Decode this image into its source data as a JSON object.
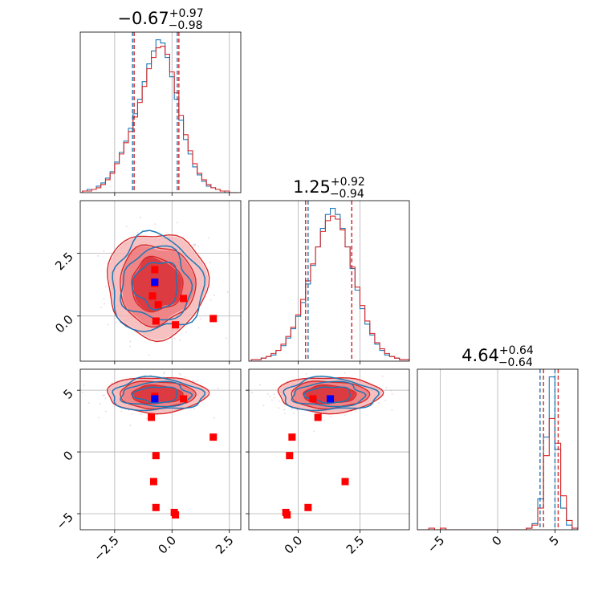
{
  "figure": {
    "colors": {
      "blue": "#1f77b4",
      "red": "#d62728",
      "red_marker": "#ff0000",
      "blue_marker": "#0000ff",
      "grid": "#b0b0b0"
    },
    "grid": true
  },
  "panels": {
    "p00": {
      "title_value": "−0.67",
      "title_sup": "+0.97",
      "title_sub": "−0.98"
    },
    "p11": {
      "title_value": "1.25",
      "title_sup": "+0.92",
      "title_sub": "−0.94"
    },
    "p22": {
      "title_value": "4.64",
      "title_sup": "+0.64",
      "title_sub": "−0.64"
    }
  },
  "chart_data": {
    "type": "scatter",
    "subtype": "corner-plot",
    "parameters": 3,
    "axes": {
      "x1": {
        "range": [
          -4.0,
          3.0
        ],
        "ticks": [
          -2.5,
          0.0,
          2.5
        ],
        "tick_labels": [
          "−2.5",
          "0.0",
          "2.5"
        ]
      },
      "x2": {
        "range": [
          -2.0,
          4.5
        ],
        "ticks": [
          0.0,
          2.5
        ],
        "tick_labels": [
          "0.0",
          "2.5"
        ]
      },
      "x3": {
        "range": [
          -7.0,
          7.0
        ],
        "ticks": [
          -5,
          0,
          5
        ],
        "tick_labels": [
          "−5",
          "0",
          "5"
        ]
      },
      "y_row1": {
        "range": [
          -1.8,
          4.6
        ],
        "ticks": [
          0.0,
          2.5
        ],
        "tick_labels": [
          "0.0",
          "2.5"
        ]
      },
      "y_row2": {
        "range": [
          -6.3,
          6.7
        ],
        "ticks": [
          -5,
          0,
          5
        ],
        "tick_labels": [
          "−5",
          "0",
          "5"
        ]
      }
    },
    "marginals": [
      {
        "param": 1,
        "mean": -0.67,
        "plus": 0.97,
        "minus": 0.98,
        "quantiles_red": [
          -1.65,
          0.3
        ],
        "quantiles_blue": [
          -1.72,
          0.23
        ],
        "bins": [
          -3.9,
          -3.7,
          -3.5,
          -3.3,
          -3.1,
          -2.9,
          -2.7,
          -2.5,
          -2.3,
          -2.1,
          -1.9,
          -1.7,
          -1.5,
          -1.3,
          -1.1,
          -0.9,
          -0.7,
          -0.5,
          -0.3,
          -0.1,
          0.1,
          0.3,
          0.5,
          0.7,
          0.9,
          1.1,
          1.3,
          1.5,
          1.7,
          1.9,
          2.1,
          2.3,
          2.5,
          2.7,
          2.9
        ],
        "hist_red": [
          1,
          1,
          2,
          3,
          5,
          8,
          12,
          18,
          24,
          31,
          38,
          47,
          56,
          66,
          77,
          84,
          90,
          91,
          86,
          75,
          62,
          48,
          36,
          26,
          18,
          12,
          8,
          5,
          3,
          2,
          1,
          1,
          0,
          0
        ],
        "hist_blue": [
          1,
          2,
          2,
          4,
          6,
          9,
          13,
          19,
          25,
          32,
          40,
          49,
          58,
          69,
          80,
          88,
          95,
          93,
          84,
          72,
          58,
          45,
          33,
          24,
          16,
          11,
          7,
          4,
          3,
          2,
          1,
          0,
          0,
          0
        ]
      },
      {
        "param": 2,
        "mean": 1.25,
        "plus": 0.92,
        "minus": 0.94,
        "quantiles_red": [
          0.3,
          2.17
        ],
        "quantiles_blue": [
          0.4,
          2.17
        ],
        "bins": [
          -1.9,
          -1.7,
          -1.5,
          -1.3,
          -1.1,
          -0.9,
          -0.7,
          -0.5,
          -0.3,
          -0.1,
          0.1,
          0.3,
          0.5,
          0.7,
          0.9,
          1.1,
          1.3,
          1.5,
          1.7,
          1.9,
          2.1,
          2.3,
          2.5,
          2.7,
          2.9,
          3.1,
          3.3,
          3.5,
          3.7,
          3.9,
          4.1,
          4.3,
          4.5
        ],
        "hist_red": [
          1,
          1,
          2,
          3,
          5,
          7,
          11,
          16,
          22,
          30,
          40,
          52,
          63,
          74,
          84,
          91,
          94,
          92,
          85,
          74,
          61,
          48,
          36,
          26,
          18,
          12,
          8,
          5,
          3,
          2,
          1,
          1
        ],
        "hist_blue": [
          1,
          1,
          2,
          3,
          4,
          7,
          10,
          15,
          21,
          29,
          38,
          50,
          62,
          74,
          86,
          95,
          99,
          95,
          86,
          74,
          60,
          46,
          34,
          24,
          17,
          11,
          7,
          4,
          3,
          2,
          1,
          1
        ]
      },
      {
        "param": 3,
        "mean": 4.64,
        "plus": 0.64,
        "minus": 0.64,
        "quantiles_red": [
          4.0,
          5.28
        ],
        "quantiles_blue": [
          3.7,
          5.0
        ],
        "bins": [
          -7.0,
          -6.5,
          -6.0,
          -5.5,
          -5.0,
          -4.5,
          -4.0,
          -3.5,
          -3.0,
          -2.5,
          -2.0,
          -1.5,
          -1.0,
          -0.5,
          0.0,
          0.5,
          1.0,
          1.5,
          2.0,
          2.5,
          3.0,
          3.5,
          4.0,
          4.5,
          5.0,
          5.5,
          6.0,
          6.5,
          7.0
        ],
        "hist_red": [
          0,
          0,
          1,
          0,
          1,
          0,
          0,
          0,
          0,
          0,
          0,
          0,
          0,
          0,
          0,
          0,
          0,
          0,
          0,
          1,
          3,
          14,
          48,
          72,
          56,
          22,
          6,
          1
        ],
        "hist_blue": [
          0,
          0,
          0,
          0,
          0,
          0,
          0,
          0,
          0,
          0,
          0,
          0,
          0,
          0,
          0,
          0,
          0,
          0,
          0,
          1,
          4,
          20,
          60,
          99,
          52,
          14,
          3,
          0
        ]
      }
    ],
    "joint": [
      {
        "xparam": 1,
        "yparam": 2,
        "center": [
          -0.67,
          1.25
        ],
        "sigma": [
          0.97,
          0.93
        ],
        "markers_red": [
          [
            -0.75,
            1.85
          ],
          [
            -0.75,
            1.3
          ],
          [
            -0.85,
            0.8
          ],
          [
            -0.6,
            0.45
          ],
          [
            -0.7,
            -0.2
          ],
          [
            0.15,
            -0.35
          ],
          [
            0.5,
            0.7
          ],
          [
            1.8,
            -0.1
          ]
        ],
        "markers_blue": [
          [
            -0.75,
            1.35
          ]
        ]
      },
      {
        "xparam": 1,
        "yparam": 3,
        "center": [
          -0.67,
          4.64
        ],
        "sigma": [
          0.97,
          0.64
        ],
        "markers_red": [
          [
            -0.75,
            4.5
          ],
          [
            -0.9,
            2.8
          ],
          [
            0.5,
            4.3
          ],
          [
            1.8,
            1.2
          ],
          [
            -0.7,
            -0.3
          ],
          [
            -0.8,
            -2.4
          ],
          [
            -0.7,
            -4.5
          ],
          [
            0.1,
            -4.9
          ],
          [
            0.15,
            -5.1
          ]
        ],
        "markers_blue": [
          [
            -0.75,
            4.3
          ]
        ]
      },
      {
        "xparam": 2,
        "yparam": 3,
        "center": [
          1.25,
          4.64
        ],
        "sigma": [
          0.93,
          0.64
        ],
        "markers_red": [
          [
            0.6,
            4.3
          ],
          [
            0.8,
            2.8
          ],
          [
            -0.25,
            1.2
          ],
          [
            -0.35,
            -0.3
          ],
          [
            1.9,
            -2.4
          ],
          [
            0.4,
            -4.5
          ],
          [
            -0.5,
            -4.9
          ],
          [
            -0.45,
            -5.1
          ]
        ],
        "markers_blue": [
          [
            1.3,
            4.3
          ]
        ]
      }
    ]
  }
}
